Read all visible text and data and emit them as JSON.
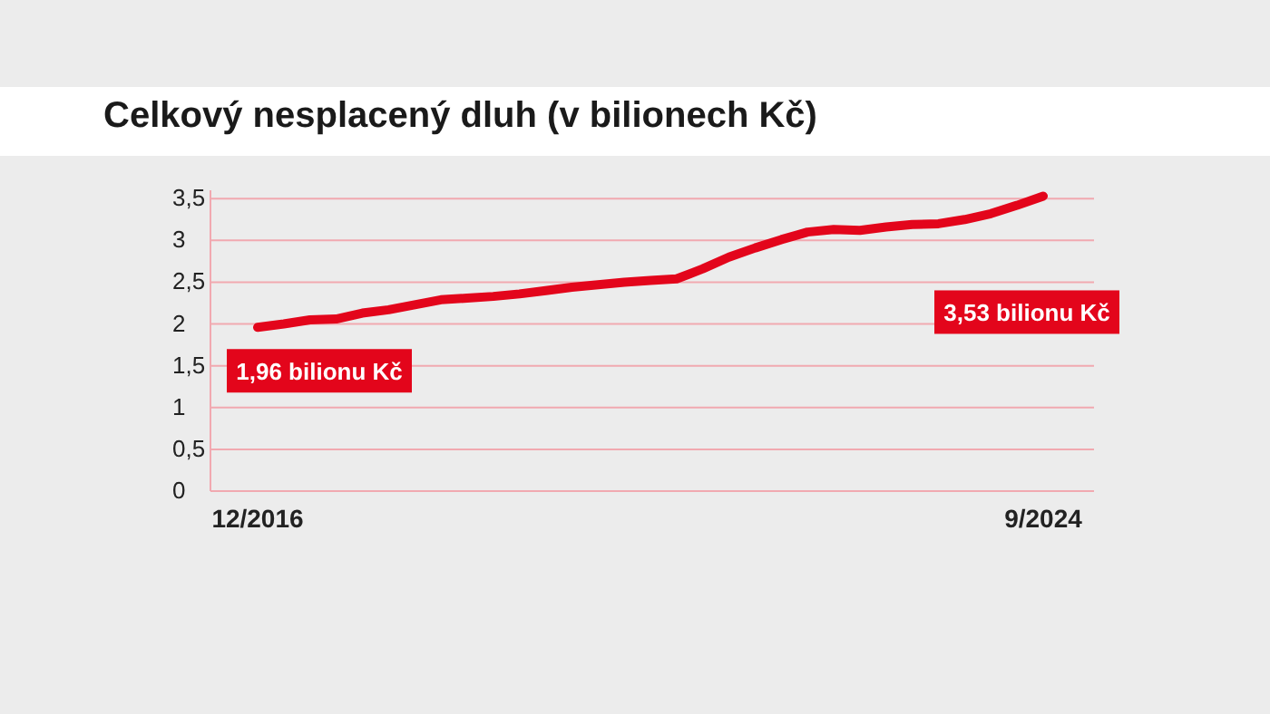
{
  "chart_data": {
    "type": "line",
    "title": "Celkový nesplacený dluh (v bilionech Kč)",
    "categories": [
      "12/2016",
      null,
      null,
      null,
      null,
      null,
      null,
      null,
      null,
      null,
      null,
      null,
      null,
      null,
      null,
      null,
      null,
      null,
      null,
      null,
      null,
      null,
      null,
      null,
      null,
      null,
      null,
      null,
      null,
      null,
      "9/2024"
    ],
    "series": [
      {
        "color": "#e3051b",
        "values": [
          1.96,
          2.0,
          2.05,
          2.06,
          2.13,
          2.17,
          2.23,
          2.29,
          2.31,
          2.33,
          2.36,
          2.4,
          2.44,
          2.47,
          2.5,
          2.52,
          2.54,
          2.66,
          2.8,
          2.91,
          3.01,
          3.1,
          3.13,
          3.12,
          3.16,
          3.19,
          3.2,
          3.25,
          3.32,
          3.42,
          3.53
        ]
      }
    ],
    "ylim": [
      0,
      3.6
    ],
    "yticks": [
      0,
      {
        "value": 0.5,
        "label": "0,5"
      },
      1,
      {
        "value": 1.5,
        "label": "1,5"
      },
      2,
      {
        "value": 2.5,
        "label": "2,5"
      },
      3,
      {
        "value": 3.5,
        "label": "3,5"
      }
    ],
    "grid": "y",
    "marker": "none",
    "line_style": "solid",
    "annotations": [
      {
        "text": "1,96 bilionu Kč",
        "x": "12/2016",
        "y": 1.96
      },
      "3,53 bilionu Kč"
    ]
  }
}
